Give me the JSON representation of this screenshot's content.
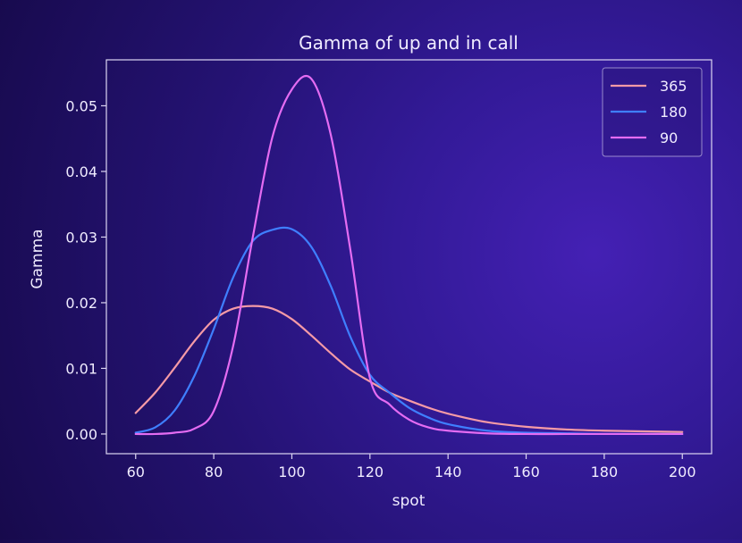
{
  "chart_data": {
    "type": "line",
    "title": "Gamma of up and in call",
    "xlabel": "spot",
    "ylabel": "Gamma",
    "xlim": [
      52.5,
      207.5
    ],
    "ylim": [
      -0.003,
      0.057
    ],
    "xticks": [
      60,
      80,
      100,
      120,
      140,
      160,
      180,
      200
    ],
    "xtick_labels": [
      "60",
      "80",
      "100",
      "120",
      "140",
      "160",
      "180",
      "200"
    ],
    "yticks": [
      0.0,
      0.01,
      0.02,
      0.03,
      0.04,
      0.05
    ],
    "ytick_labels": [
      "0.00",
      "0.01",
      "0.02",
      "0.03",
      "0.04",
      "0.05"
    ],
    "grid": false,
    "legend_position": "top-right",
    "x": [
      60,
      65,
      70,
      75,
      80,
      85,
      90,
      95,
      100,
      105,
      110,
      115,
      120,
      125,
      130,
      135,
      140,
      150,
      160,
      170,
      180,
      190,
      200
    ],
    "series": [
      {
        "name": "365",
        "color": "#f59aa6",
        "values": [
          0.0032,
          0.0063,
          0.0101,
          0.0141,
          0.0174,
          0.0191,
          0.0195,
          0.0191,
          0.0175,
          0.015,
          0.0123,
          0.0098,
          0.008,
          0.0063,
          0.0051,
          0.004,
          0.0031,
          0.0018,
          0.0011,
          0.0007,
          0.0005,
          0.0004,
          0.0003
        ]
      },
      {
        "name": "180",
        "color": "#3f7fff",
        "values": [
          0.0002,
          0.001,
          0.0036,
          0.0088,
          0.016,
          0.0239,
          0.0294,
          0.0311,
          0.0312,
          0.0285,
          0.0225,
          0.0148,
          0.009,
          0.0063,
          0.004,
          0.0025,
          0.0015,
          0.0005,
          0.0002,
          0.0001,
          0.0,
          0.0,
          0.0
        ]
      },
      {
        "name": "90",
        "color": "#e46cf2",
        "values": [
          0.0,
          0.0,
          0.0002,
          0.0008,
          0.0035,
          0.0135,
          0.03,
          0.0452,
          0.0525,
          0.0541,
          0.0455,
          0.028,
          0.0085,
          0.0045,
          0.0022,
          0.001,
          0.0005,
          0.0001,
          0.0,
          0.0,
          0.0,
          0.0,
          0.0
        ]
      }
    ]
  }
}
